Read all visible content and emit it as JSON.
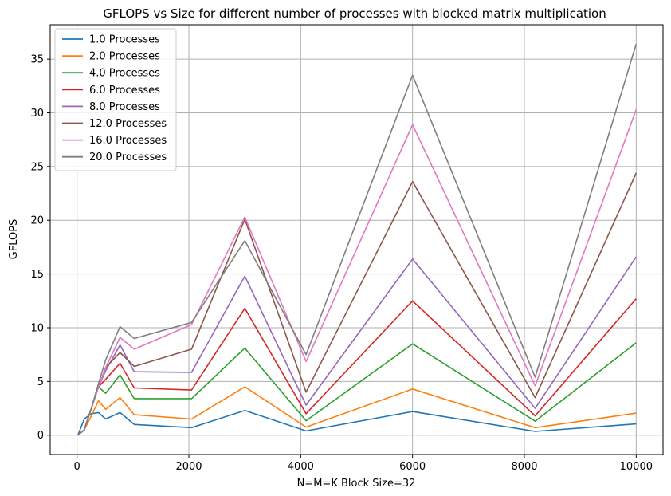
{
  "chart_data": {
    "type": "line",
    "title": "GFLOPS vs Size for different number of processes with blocked matrix multiplication",
    "xlabel": "N=M=K Block Size=32",
    "ylabel": "GFLOPS",
    "xlim": [
      -480,
      10480
    ],
    "ylim": [
      -1.8,
      38.2
    ],
    "xticks": [
      0,
      2000,
      4000,
      6000,
      8000,
      10000
    ],
    "yticks": [
      0,
      5,
      10,
      15,
      20,
      25,
      30,
      35
    ],
    "grid": true,
    "legend_position": "top-left",
    "x": [
      16,
      128,
      256,
      384,
      512,
      768,
      1024,
      2048,
      3000,
      4096,
      6000,
      8192,
      10000
    ],
    "series": [
      {
        "name": "1.0 Processes",
        "color": "#1f77b4",
        "values": [
          0.0,
          1.5,
          2.0,
          2.1,
          1.5,
          2.1,
          1.0,
          0.7,
          2.3,
          0.4,
          2.2,
          0.35,
          1.05
        ]
      },
      {
        "name": "2.0 Processes",
        "color": "#ff7f0e",
        "values": [
          0.0,
          0.5,
          1.8,
          3.2,
          2.4,
          3.5,
          1.9,
          1.5,
          4.5,
          0.75,
          4.3,
          0.7,
          2.05
        ]
      },
      {
        "name": "4.0 Processes",
        "color": "#2ca02c",
        "values": [
          0.0,
          0.5,
          2.5,
          4.5,
          3.9,
          5.6,
          3.4,
          3.4,
          8.1,
          1.35,
          8.5,
          1.3,
          8.6
        ]
      },
      {
        "name": "6.0 Processes",
        "color": "#d62728",
        "values": [
          0.0,
          0.5,
          2.5,
          4.5,
          5.2,
          6.7,
          4.4,
          4.2,
          11.8,
          2.0,
          12.5,
          1.8,
          12.7
        ]
      },
      {
        "name": "8.0 Processes",
        "color": "#9467bd",
        "values": [
          0.0,
          0.5,
          2.5,
          4.5,
          6.0,
          8.4,
          5.9,
          5.85,
          14.8,
          2.8,
          16.4,
          2.5,
          16.6
        ]
      },
      {
        "name": "12.0 Processes",
        "color": "#8c564b",
        "values": [
          0.0,
          0.5,
          2.5,
          4.5,
          6.3,
          7.7,
          6.4,
          8.0,
          20.1,
          4.0,
          23.6,
          3.5,
          24.4
        ]
      },
      {
        "name": "16.0 Processes",
        "color": "#e377c2",
        "values": [
          0.0,
          0.5,
          2.5,
          4.5,
          6.3,
          9.1,
          8.0,
          10.3,
          20.3,
          6.85,
          28.9,
          4.6,
          30.3
        ]
      },
      {
        "name": "20.0 Processes",
        "color": "#7f7f7f",
        "values": [
          0.0,
          0.5,
          2.5,
          4.8,
          7.0,
          10.1,
          9.0,
          10.5,
          18.1,
          7.5,
          33.5,
          5.4,
          36.4
        ]
      }
    ]
  }
}
